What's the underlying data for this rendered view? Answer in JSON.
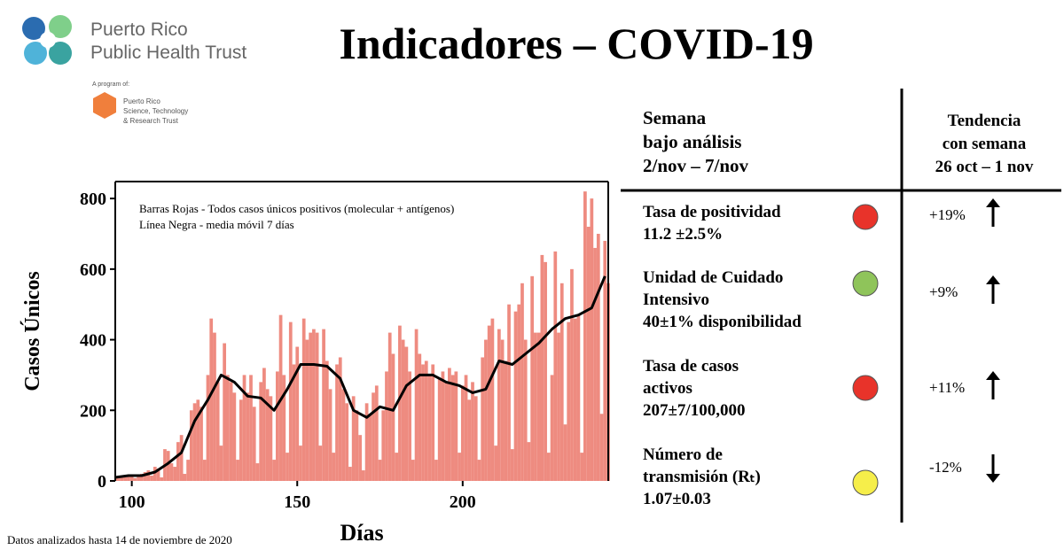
{
  "header": {
    "title": "Indicadores – COVID-19",
    "org_line1": "Puerto Rico",
    "org_line2": "Public Health Trust",
    "program_of": "A program of:",
    "sub_org": [
      "Puerto Rico",
      "Science, Technology",
      "& Research Trust"
    ]
  },
  "chart_data": {
    "type": "bar",
    "y_label": "Casos Únicos",
    "x_label": "Días",
    "x": [
      95,
      96,
      97,
      98,
      99,
      100,
      101,
      102,
      103,
      104,
      105,
      106,
      107,
      108,
      109,
      110,
      111,
      112,
      113,
      114,
      115,
      116,
      117,
      118,
      119,
      120,
      121,
      122,
      123,
      124,
      125,
      126,
      127,
      128,
      129,
      130,
      131,
      132,
      133,
      134,
      135,
      136,
      137,
      138,
      139,
      140,
      141,
      142,
      143,
      144,
      145,
      146,
      147,
      148,
      149,
      150,
      151,
      152,
      153,
      154,
      155,
      156,
      157,
      158,
      159,
      160,
      161,
      162,
      163,
      164,
      165,
      166,
      167,
      168,
      169,
      170,
      171,
      172,
      173,
      174,
      175,
      176,
      177,
      178,
      179,
      180,
      181,
      182,
      183,
      184,
      185,
      186,
      187,
      188,
      189,
      190,
      191,
      192,
      193,
      194,
      195,
      196,
      197,
      198,
      199,
      200,
      201,
      202,
      203,
      204,
      205,
      206,
      207,
      208,
      209,
      210,
      211,
      212,
      213,
      214,
      215,
      216,
      217,
      218,
      219,
      220,
      221,
      222,
      223,
      224,
      225,
      226,
      227,
      228,
      229,
      230,
      231,
      232,
      233,
      234,
      235,
      236,
      237,
      238,
      239,
      240,
      241,
      242,
      243,
      244
    ],
    "series": [
      {
        "name": "Barras Rojas - Todos casos únicos positivos (molecular + antígenos)",
        "color": "#ee8b80",
        "values": [
          10,
          12,
          15,
          10,
          14,
          12,
          8,
          15,
          20,
          25,
          30,
          15,
          40,
          35,
          10,
          90,
          85,
          50,
          40,
          110,
          130,
          20,
          60,
          200,
          220,
          230,
          210,
          60,
          300,
          460,
          420,
          280,
          100,
          390,
          300,
          280,
          250,
          60,
          230,
          300,
          250,
          300,
          210,
          50,
          280,
          320,
          260,
          240,
          60,
          310,
          470,
          300,
          80,
          450,
          330,
          380,
          100,
          460,
          400,
          420,
          430,
          420,
          100,
          430,
          340,
          260,
          80,
          330,
          350,
          260,
          220,
          40,
          240,
          200,
          130,
          30,
          220,
          190,
          250,
          270,
          60,
          200,
          310,
          420,
          360,
          80,
          440,
          400,
          380,
          310,
          60,
          430,
          360,
          330,
          340,
          300,
          330,
          60,
          290,
          310,
          280,
          320,
          300,
          310,
          80,
          270,
          300,
          230,
          280,
          240,
          60,
          350,
          400,
          440,
          460,
          100,
          430,
          400,
          340,
          500,
          90,
          480,
          500,
          560,
          400,
          110,
          580,
          420,
          420,
          640,
          620,
          80,
          300,
          650,
          420,
          560,
          160,
          450,
          600,
          460,
          470,
          80,
          820,
          720,
          800,
          660,
          700,
          190,
          680,
          560
        ]
      },
      {
        "name": "Línea Negra - media móvil 7 días",
        "color": "#000000",
        "type": "line",
        "x": [
          95,
          99,
          103,
          107,
          111,
          115,
          119,
          123,
          127,
          131,
          135,
          139,
          143,
          147,
          151,
          155,
          159,
          163,
          167,
          171,
          175,
          179,
          183,
          187,
          191,
          195,
          199,
          203,
          207,
          211,
          215,
          219,
          223,
          227,
          231,
          235,
          239,
          243
        ],
        "values": [
          10,
          15,
          15,
          25,
          50,
          80,
          170,
          230,
          300,
          280,
          240,
          235,
          200,
          260,
          330,
          330,
          325,
          290,
          200,
          180,
          210,
          200,
          270,
          300,
          300,
          280,
          270,
          250,
          260,
          340,
          330,
          360,
          390,
          430,
          460,
          470,
          490,
          580
        ]
      }
    ],
    "xlim": [
      95,
      244
    ],
    "ylim": [
      0,
      848
    ],
    "xticks": [
      100,
      150,
      200
    ],
    "yticks": [
      0,
      200,
      400,
      600,
      800
    ]
  },
  "indicators": {
    "week_header": [
      "Semana",
      "bajo análisis",
      "2/nov – 7/nov"
    ],
    "trend_header": [
      "Tendencia",
      "con semana",
      "26 oct – 1 nov"
    ],
    "rows": [
      {
        "label": [
          "Tasa de positividad",
          "11.2 ±2.5%"
        ],
        "color": "#e8332a",
        "trend": "+19%",
        "arrow": "up"
      },
      {
        "label": [
          "Unidad de Cuidado",
          "Intensivo",
          "40±1% disponibilidad"
        ],
        "color": "#8fc45a",
        "trend": "+9%",
        "arrow": "up"
      },
      {
        "label": [
          "Tasa de casos",
          "activos",
          "207±7/100,000"
        ],
        "color": "#e8332a",
        "trend": "+11%",
        "arrow": "up"
      },
      {
        "label": [
          "Número de",
          "transmisión (Rₜ)",
          "1.07±0.03"
        ],
        "color": "#f6ee4a",
        "trend": "-12%",
        "arrow": "down"
      }
    ]
  },
  "footer": "Datos analizados hasta 14 de noviembre de 2020"
}
